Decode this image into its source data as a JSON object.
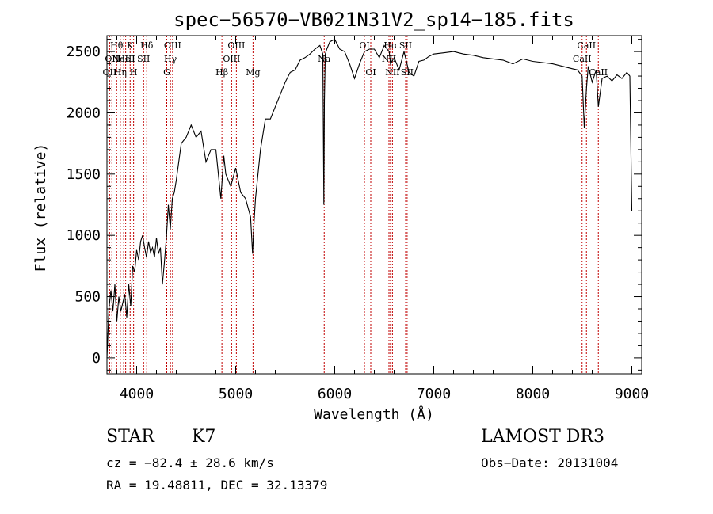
{
  "chart_data": {
    "type": "line",
    "title": "spec−56570−VB021N31V2_sp14−185.fits",
    "xlabel": "Wavelength (Å)",
    "ylabel": "Flux (relative)",
    "xlim": [
      3700,
      9100
    ],
    "ylim": [
      -130,
      2630
    ],
    "x_ticks": [
      4000,
      5000,
      6000,
      7000,
      8000,
      9000
    ],
    "y_ticks": [
      0,
      500,
      1000,
      1500,
      2000,
      2500
    ],
    "series": [
      {
        "name": "spectrum",
        "x": [
          3700,
          3720,
          3740,
          3760,
          3780,
          3800,
          3820,
          3840,
          3860,
          3880,
          3900,
          3920,
          3940,
          3960,
          3980,
          4000,
          4020,
          4040,
          4060,
          4080,
          4100,
          4120,
          4140,
          4160,
          4180,
          4200,
          4220,
          4240,
          4260,
          4280,
          4300,
          4320,
          4340,
          4360,
          4380,
          4400,
          4450,
          4500,
          4550,
          4600,
          4650,
          4700,
          4750,
          4800,
          4850,
          4880,
          4900,
          4950,
          5000,
          5050,
          5100,
          5150,
          5170,
          5185,
          5200,
          5250,
          5300,
          5350,
          5400,
          5450,
          5500,
          5550,
          5600,
          5650,
          5700,
          5750,
          5800,
          5850,
          5880,
          5890,
          5896,
          5905,
          5920,
          5950,
          6000,
          6050,
          6100,
          6150,
          6200,
          6250,
          6300,
          6350,
          6400,
          6450,
          6500,
          6550,
          6563,
          6600,
          6650,
          6700,
          6750,
          6800,
          6850,
          6900,
          6950,
          7000,
          7100,
          7200,
          7300,
          7400,
          7500,
          7600,
          7700,
          7800,
          7900,
          8000,
          8100,
          8200,
          8300,
          8400,
          8450,
          8498,
          8520,
          8542,
          8560,
          8600,
          8640,
          8662,
          8700,
          8750,
          8800,
          8850,
          8900,
          8950,
          8980,
          9000
        ],
        "y": [
          0,
          400,
          550,
          380,
          600,
          300,
          500,
          380,
          450,
          520,
          330,
          600,
          420,
          750,
          700,
          880,
          800,
          950,
          1000,
          900,
          820,
          950,
          860,
          900,
          820,
          980,
          850,
          900,
          600,
          780,
          980,
          1250,
          1050,
          1300,
          1350,
          1450,
          1750,
          1800,
          1900,
          1800,
          1850,
          1600,
          1700,
          1700,
          1300,
          1650,
          1500,
          1400,
          1550,
          1350,
          1300,
          1150,
          850,
          1100,
          1300,
          1700,
          1950,
          1950,
          2050,
          2150,
          2250,
          2330,
          2350,
          2430,
          2450,
          2480,
          2520,
          2550,
          2480,
          1250,
          2100,
          2480,
          2520,
          2580,
          2600,
          2520,
          2500,
          2400,
          2280,
          2400,
          2500,
          2520,
          2520,
          2450,
          2550,
          2500,
          2400,
          2450,
          2350,
          2500,
          2330,
          2300,
          2420,
          2430,
          2460,
          2480,
          2490,
          2500,
          2480,
          2470,
          2450,
          2440,
          2430,
          2400,
          2440,
          2420,
          2410,
          2400,
          2380,
          2360,
          2350,
          2300,
          1880,
          2200,
          2380,
          2250,
          2350,
          2050,
          2280,
          2300,
          2260,
          2310,
          2280,
          2330,
          2300,
          1200
        ]
      }
    ],
    "line_markers": [
      {
        "wavelength": 3727,
        "label": "OII",
        "row": 2
      },
      {
        "wavelength": 3750,
        "label": "OII",
        "row": 1
      },
      {
        "wavelength": 3798,
        "label": "Hθ",
        "row": 0
      },
      {
        "wavelength": 3835,
        "label": "Hη",
        "row": 2
      },
      {
        "wavelength": 3869,
        "label": "NeIII",
        "row": 1
      },
      {
        "wavelength": 3889,
        "label": "HeI",
        "row": 1
      },
      {
        "wavelength": 3934,
        "label": "K",
        "row": 0
      },
      {
        "wavelength": 3969,
        "label": "H",
        "row": 2
      },
      {
        "wavelength": 4070,
        "label": "SII",
        "row": 1
      },
      {
        "wavelength": 4102,
        "label": "Hδ",
        "row": 0
      },
      {
        "wavelength": 4304,
        "label": "G",
        "row": 2
      },
      {
        "wavelength": 4341,
        "label": "Hγ",
        "row": 1
      },
      {
        "wavelength": 4363,
        "label": "OIII",
        "row": 0
      },
      {
        "wavelength": 4861,
        "label": "Hβ",
        "row": 2
      },
      {
        "wavelength": 4959,
        "label": "OIII",
        "row": 1
      },
      {
        "wavelength": 5007,
        "label": "OIII",
        "row": 0
      },
      {
        "wavelength": 5175,
        "label": "Mg",
        "row": 2
      },
      {
        "wavelength": 5894,
        "label": "Na",
        "row": 1
      },
      {
        "wavelength": 6300,
        "label": "OI",
        "row": 0
      },
      {
        "wavelength": 6364,
        "label": "OI",
        "row": 2
      },
      {
        "wavelength": 6548,
        "label": "NII",
        "row": 1
      },
      {
        "wavelength": 6563,
        "label": "Hα",
        "row": 0
      },
      {
        "wavelength": 6583,
        "label": "NII",
        "row": 2
      },
      {
        "wavelength": 6716,
        "label": "SII",
        "row": 0
      },
      {
        "wavelength": 6731,
        "label": "SII",
        "row": 2
      },
      {
        "wavelength": 8498,
        "label": "CaII",
        "row": 1
      },
      {
        "wavelength": 8542,
        "label": "CaII",
        "row": 0
      },
      {
        "wavelength": 8662,
        "label": "CaII",
        "row": 2
      }
    ]
  },
  "info": {
    "class": "STAR",
    "subclass": "K7",
    "survey": "LAMOST DR3",
    "cz": "cz = −82.4 ± 28.6 km/s",
    "obs_date": "Obs−Date: 20131004",
    "coords": "RA =  19.48811, DEC =  32.13379"
  },
  "colors": {
    "spectrum": "#000000",
    "marker_line": "#c00000",
    "axis": "#000000",
    "background": "#ffffff"
  }
}
